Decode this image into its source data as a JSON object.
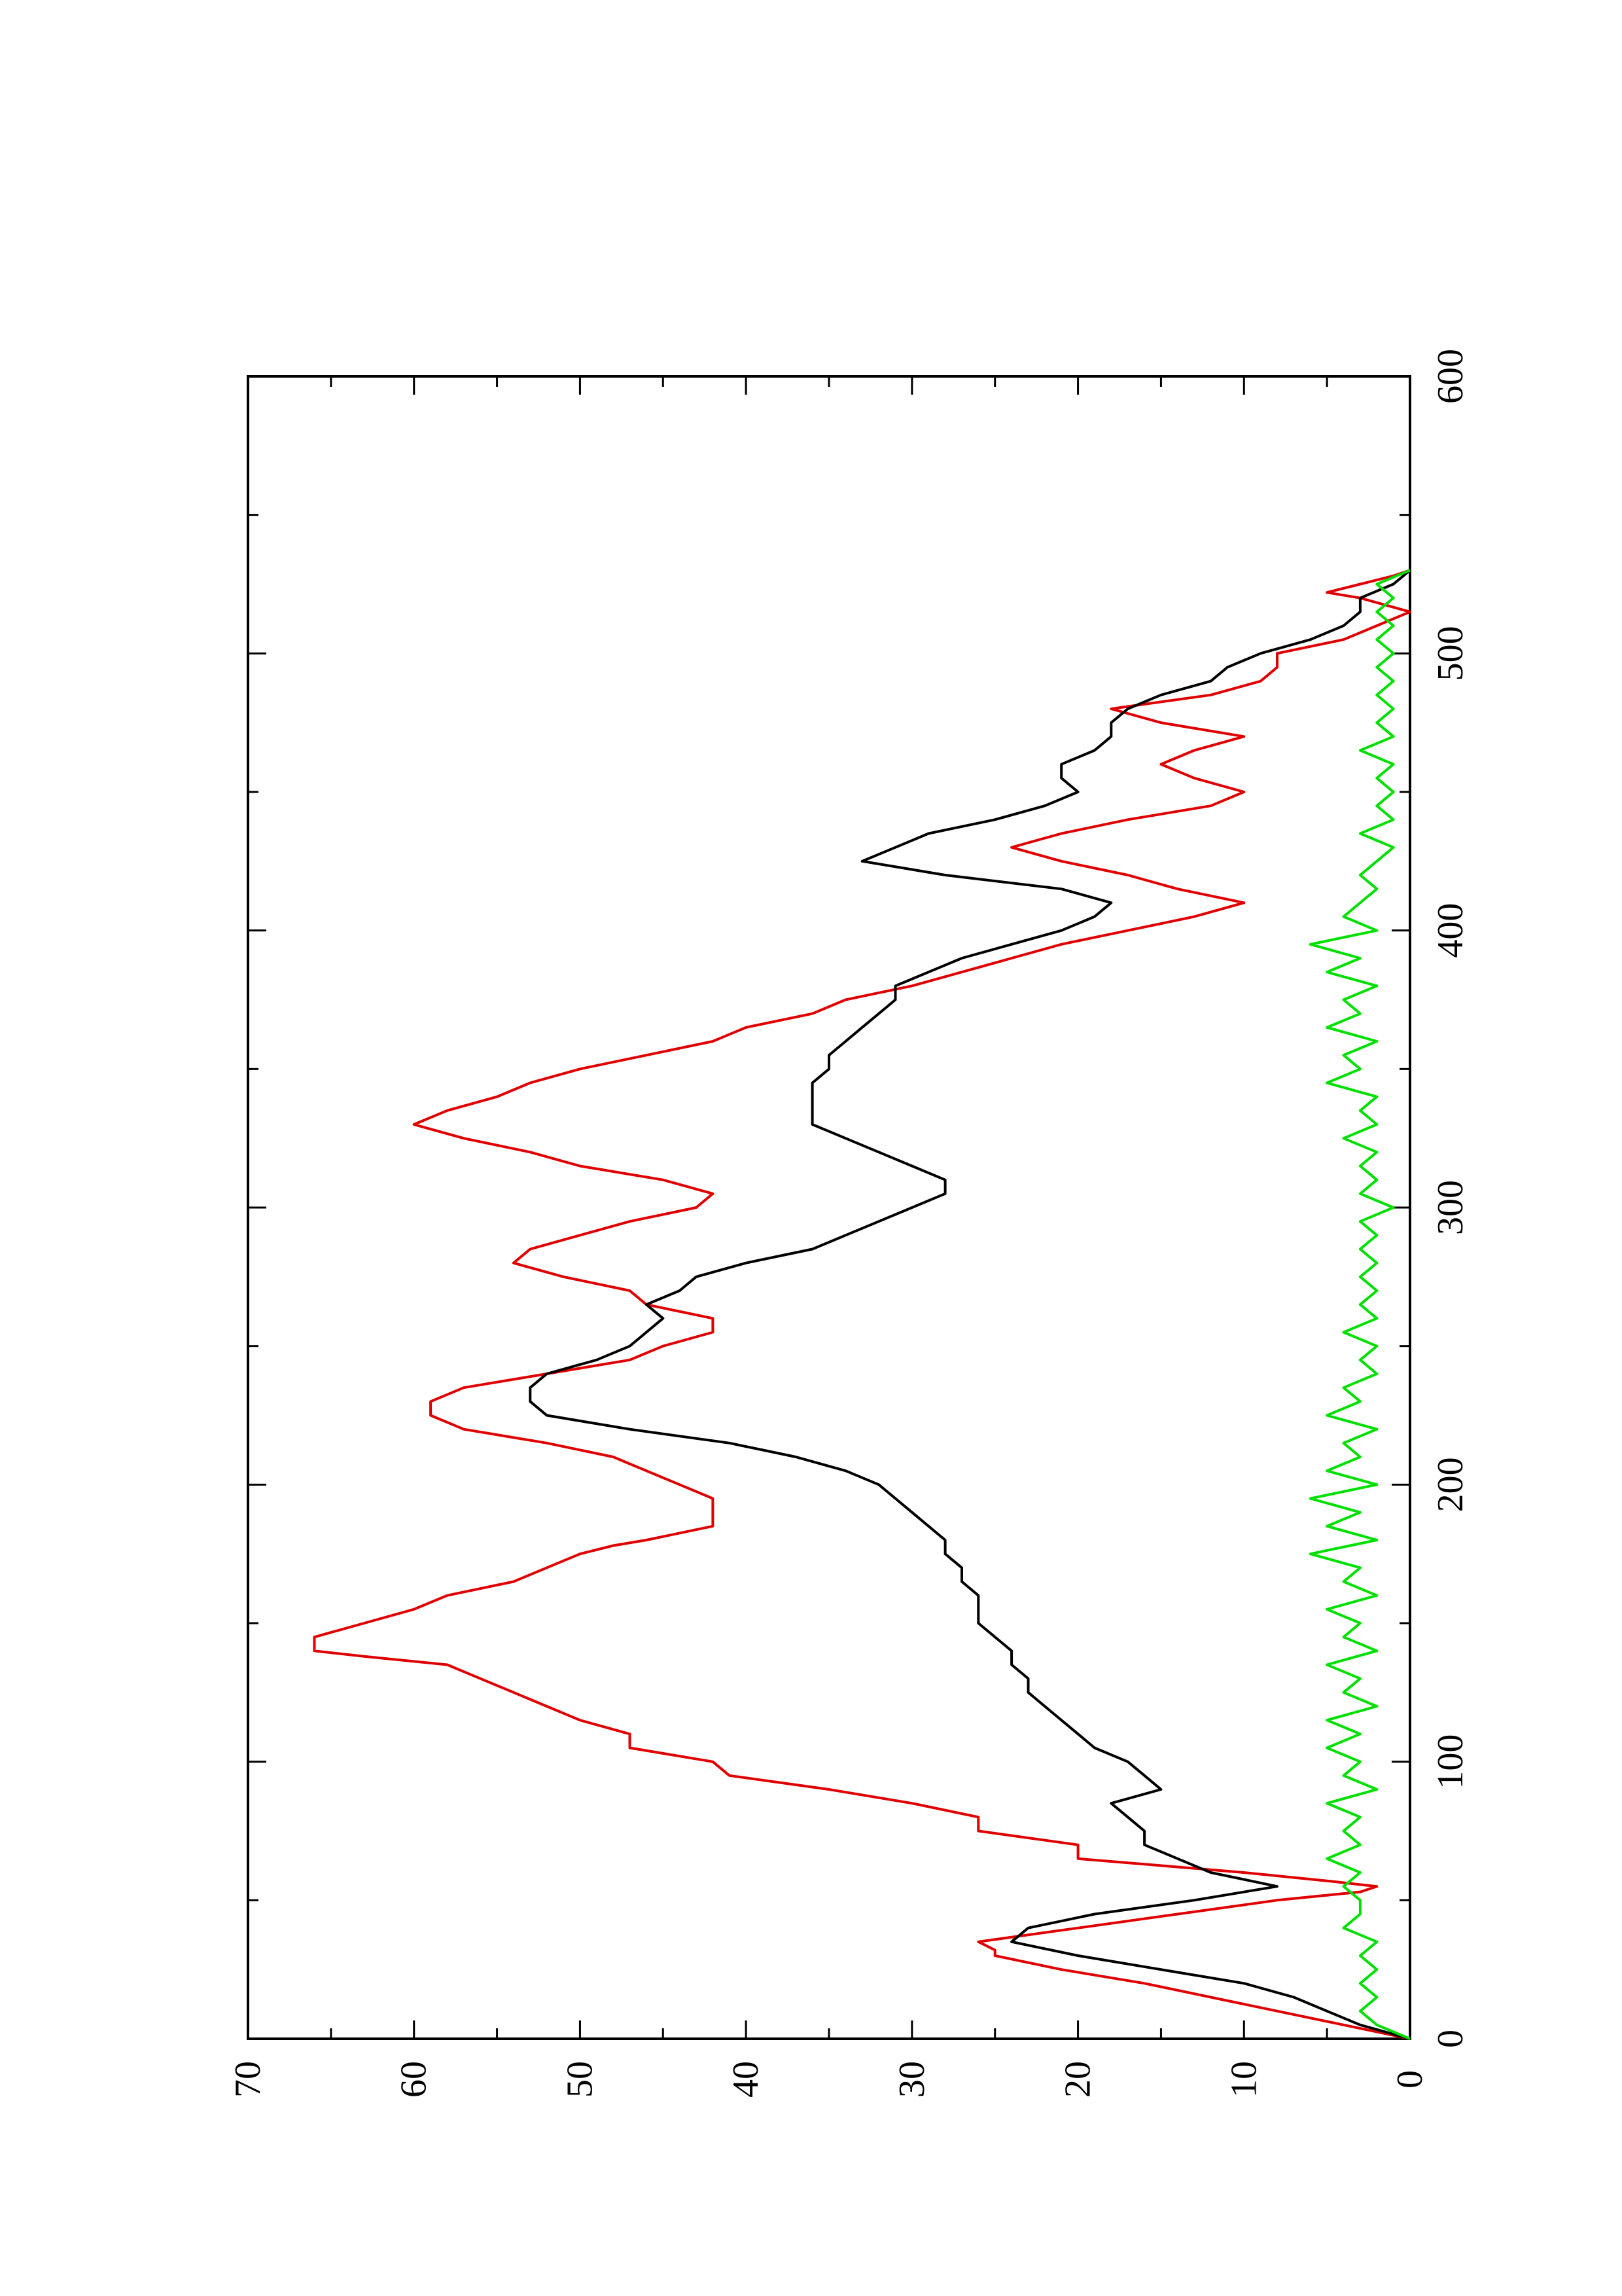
{
  "chart_data": {
    "type": "line",
    "title": "",
    "xlabel": "",
    "ylabel": "",
    "orientation": "rotated 90 degrees counter-clockwise",
    "xlim": [
      0,
      600
    ],
    "ylim": [
      0,
      70
    ],
    "grid": false,
    "x_ticks": [
      "0",
      "100",
      "200",
      "300",
      "400",
      "500",
      "600"
    ],
    "y_ticks": [
      "0",
      "10",
      "20",
      "30",
      "40",
      "50",
      "60",
      "70"
    ],
    "series": [
      {
        "color": "#e00000",
        "points": [
          [
            0,
            0
          ],
          [
            5,
            4
          ],
          [
            10,
            8
          ],
          [
            15,
            12
          ],
          [
            20,
            16
          ],
          [
            25,
            21
          ],
          [
            30,
            25
          ],
          [
            32,
            25
          ],
          [
            35,
            26
          ],
          [
            40,
            20
          ],
          [
            45,
            14
          ],
          [
            50,
            8
          ],
          [
            53,
            3
          ],
          [
            55,
            2
          ],
          [
            57,
            5
          ],
          [
            60,
            10
          ],
          [
            62,
            14
          ],
          [
            65,
            20
          ],
          [
            70,
            20
          ],
          [
            75,
            26
          ],
          [
            80,
            26
          ],
          [
            85,
            30
          ],
          [
            90,
            35
          ],
          [
            95,
            41
          ],
          [
            100,
            42
          ],
          [
            102,
            44
          ],
          [
            105,
            47
          ],
          [
            110,
            47
          ],
          [
            115,
            50
          ],
          [
            120,
            52
          ],
          [
            125,
            54
          ],
          [
            130,
            56
          ],
          [
            135,
            58
          ],
          [
            138,
            63
          ],
          [
            140,
            66
          ],
          [
            145,
            66
          ],
          [
            150,
            63
          ],
          [
            155,
            60
          ],
          [
            160,
            58
          ],
          [
            165,
            54
          ],
          [
            170,
            52
          ],
          [
            175,
            50
          ],
          [
            178,
            48
          ],
          [
            180,
            46
          ],
          [
            185,
            42
          ],
          [
            195,
            42
          ],
          [
            200,
            44
          ],
          [
            205,
            46
          ],
          [
            210,
            48
          ],
          [
            215,
            52
          ],
          [
            220,
            57
          ],
          [
            225,
            59
          ],
          [
            230,
            59
          ],
          [
            235,
            57
          ],
          [
            240,
            52
          ],
          [
            245,
            47
          ],
          [
            250,
            45
          ],
          [
            255,
            42
          ],
          [
            260,
            42
          ],
          [
            265,
            46
          ],
          [
            270,
            47
          ],
          [
            275,
            51
          ],
          [
            280,
            54
          ],
          [
            285,
            53
          ],
          [
            290,
            50
          ],
          [
            295,
            47
          ],
          [
            300,
            43
          ],
          [
            305,
            42
          ],
          [
            310,
            45
          ],
          [
            315,
            50
          ],
          [
            320,
            53
          ],
          [
            325,
            57
          ],
          [
            330,
            60
          ],
          [
            335,
            58
          ],
          [
            340,
            55
          ],
          [
            345,
            53
          ],
          [
            350,
            50
          ],
          [
            355,
            46
          ],
          [
            360,
            42
          ],
          [
            365,
            40
          ],
          [
            370,
            36
          ],
          [
            375,
            34
          ],
          [
            380,
            30
          ],
          [
            385,
            27
          ],
          [
            390,
            24
          ],
          [
            395,
            21
          ],
          [
            400,
            17
          ],
          [
            405,
            13
          ],
          [
            410,
            10
          ],
          [
            415,
            14
          ],
          [
            420,
            17
          ],
          [
            425,
            21
          ],
          [
            430,
            24
          ],
          [
            435,
            21
          ],
          [
            440,
            17
          ],
          [
            445,
            12
          ],
          [
            450,
            10
          ],
          [
            455,
            13
          ],
          [
            460,
            15
          ],
          [
            465,
            13
          ],
          [
            470,
            10
          ],
          [
            475,
            15
          ],
          [
            480,
            18
          ],
          [
            485,
            12
          ],
          [
            490,
            9
          ],
          [
            495,
            8
          ],
          [
            500,
            8
          ],
          [
            505,
            4
          ],
          [
            510,
            2
          ],
          [
            515,
            0
          ],
          [
            520,
            3
          ],
          [
            522,
            5
          ],
          [
            525,
            3
          ],
          [
            528,
            1
          ],
          [
            530,
            0
          ]
        ]
      },
      {
        "color": "#000000",
        "points": [
          [
            0,
            0
          ],
          [
            5,
            3
          ],
          [
            10,
            5
          ],
          [
            15,
            7
          ],
          [
            20,
            10
          ],
          [
            25,
            15
          ],
          [
            30,
            20
          ],
          [
            35,
            24
          ],
          [
            40,
            23
          ],
          [
            45,
            19
          ],
          [
            50,
            13
          ],
          [
            55,
            8
          ],
          [
            60,
            12
          ],
          [
            65,
            14
          ],
          [
            70,
            16
          ],
          [
            75,
            16
          ],
          [
            80,
            17
          ],
          [
            85,
            18
          ],
          [
            90,
            15
          ],
          [
            95,
            16
          ],
          [
            100,
            17
          ],
          [
            105,
            19
          ],
          [
            110,
            20
          ],
          [
            115,
            21
          ],
          [
            120,
            22
          ],
          [
            125,
            23
          ],
          [
            130,
            23
          ],
          [
            135,
            24
          ],
          [
            140,
            24
          ],
          [
            145,
            25
          ],
          [
            150,
            26
          ],
          [
            155,
            26
          ],
          [
            160,
            26
          ],
          [
            165,
            27
          ],
          [
            170,
            27
          ],
          [
            175,
            28
          ],
          [
            180,
            28
          ],
          [
            185,
            29
          ],
          [
            190,
            30
          ],
          [
            195,
            31
          ],
          [
            200,
            32
          ],
          [
            205,
            34
          ],
          [
            210,
            37
          ],
          [
            215,
            41
          ],
          [
            220,
            47
          ],
          [
            225,
            52
          ],
          [
            230,
            53
          ],
          [
            235,
            53
          ],
          [
            240,
            52
          ],
          [
            245,
            49
          ],
          [
            250,
            47
          ],
          [
            255,
            46
          ],
          [
            260,
            45
          ],
          [
            265,
            46
          ],
          [
            270,
            44
          ],
          [
            275,
            43
          ],
          [
            280,
            40
          ],
          [
            285,
            36
          ],
          [
            290,
            34
          ],
          [
            295,
            32
          ],
          [
            300,
            30
          ],
          [
            305,
            28
          ],
          [
            310,
            28
          ],
          [
            315,
            30
          ],
          [
            320,
            32
          ],
          [
            325,
            34
          ],
          [
            330,
            36
          ],
          [
            335,
            36
          ],
          [
            340,
            36
          ],
          [
            345,
            36
          ],
          [
            350,
            35
          ],
          [
            355,
            35
          ],
          [
            360,
            34
          ],
          [
            365,
            33
          ],
          [
            370,
            32
          ],
          [
            375,
            31
          ],
          [
            380,
            31
          ],
          [
            385,
            29
          ],
          [
            390,
            27
          ],
          [
            395,
            24
          ],
          [
            400,
            21
          ],
          [
            405,
            19
          ],
          [
            410,
            18
          ],
          [
            415,
            21
          ],
          [
            420,
            28
          ],
          [
            425,
            33
          ],
          [
            430,
            31
          ],
          [
            435,
            29
          ],
          [
            440,
            25
          ],
          [
            445,
            22
          ],
          [
            450,
            20
          ],
          [
            455,
            21
          ],
          [
            460,
            21
          ],
          [
            465,
            19
          ],
          [
            470,
            18
          ],
          [
            475,
            18
          ],
          [
            480,
            17
          ],
          [
            485,
            15
          ],
          [
            490,
            12
          ],
          [
            495,
            11
          ],
          [
            500,
            9
          ],
          [
            505,
            6
          ],
          [
            510,
            4
          ],
          [
            515,
            3
          ],
          [
            520,
            3
          ],
          [
            525,
            1
          ],
          [
            530,
            0
          ]
        ]
      },
      {
        "color": "#00e000",
        "points": [
          [
            0,
            0
          ],
          [
            5,
            2
          ],
          [
            10,
            3
          ],
          [
            15,
            2
          ],
          [
            20,
            3
          ],
          [
            25,
            2
          ],
          [
            30,
            3
          ],
          [
            35,
            2
          ],
          [
            40,
            4
          ],
          [
            45,
            3
          ],
          [
            50,
            3
          ],
          [
            55,
            4
          ],
          [
            60,
            3
          ],
          [
            65,
            5
          ],
          [
            70,
            3
          ],
          [
            75,
            4
          ],
          [
            80,
            3
          ],
          [
            85,
            5
          ],
          [
            90,
            2
          ],
          [
            95,
            4
          ],
          [
            100,
            3
          ],
          [
            105,
            5
          ],
          [
            110,
            3
          ],
          [
            115,
            5
          ],
          [
            120,
            2
          ],
          [
            125,
            4
          ],
          [
            130,
            3
          ],
          [
            135,
            5
          ],
          [
            140,
            2
          ],
          [
            145,
            4
          ],
          [
            150,
            3
          ],
          [
            155,
            5
          ],
          [
            160,
            2
          ],
          [
            165,
            4
          ],
          [
            170,
            3
          ],
          [
            175,
            6
          ],
          [
            180,
            2
          ],
          [
            185,
            5
          ],
          [
            190,
            3
          ],
          [
            195,
            6
          ],
          [
            200,
            2
          ],
          [
            205,
            5
          ],
          [
            210,
            3
          ],
          [
            215,
            4
          ],
          [
            220,
            2
          ],
          [
            225,
            5
          ],
          [
            230,
            3
          ],
          [
            235,
            4
          ],
          [
            240,
            2
          ],
          [
            245,
            3
          ],
          [
            250,
            2
          ],
          [
            255,
            4
          ],
          [
            260,
            2
          ],
          [
            265,
            3
          ],
          [
            270,
            2
          ],
          [
            275,
            3
          ],
          [
            280,
            2
          ],
          [
            285,
            3
          ],
          [
            290,
            2
          ],
          [
            295,
            3
          ],
          [
            300,
            1
          ],
          [
            305,
            3
          ],
          [
            310,
            2
          ],
          [
            315,
            3
          ],
          [
            320,
            2
          ],
          [
            325,
            4
          ],
          [
            330,
            2
          ],
          [
            335,
            3
          ],
          [
            340,
            2
          ],
          [
            345,
            5
          ],
          [
            350,
            3
          ],
          [
            355,
            4
          ],
          [
            360,
            2
          ],
          [
            365,
            5
          ],
          [
            370,
            3
          ],
          [
            375,
            4
          ],
          [
            380,
            2
          ],
          [
            385,
            5
          ],
          [
            390,
            3
          ],
          [
            395,
            6
          ],
          [
            400,
            2
          ],
          [
            405,
            4
          ],
          [
            410,
            3
          ],
          [
            415,
            2
          ],
          [
            420,
            3
          ],
          [
            425,
            2
          ],
          [
            430,
            1
          ],
          [
            435,
            3
          ],
          [
            440,
            1
          ],
          [
            445,
            2
          ],
          [
            450,
            1
          ],
          [
            455,
            2
          ],
          [
            460,
            1
          ],
          [
            465,
            3
          ],
          [
            470,
            1
          ],
          [
            475,
            2
          ],
          [
            480,
            1
          ],
          [
            485,
            2
          ],
          [
            490,
            1
          ],
          [
            495,
            2
          ],
          [
            500,
            1
          ],
          [
            505,
            2
          ],
          [
            510,
            1
          ],
          [
            515,
            2
          ],
          [
            520,
            1
          ],
          [
            525,
            2
          ],
          [
            530,
            0
          ]
        ]
      }
    ]
  }
}
